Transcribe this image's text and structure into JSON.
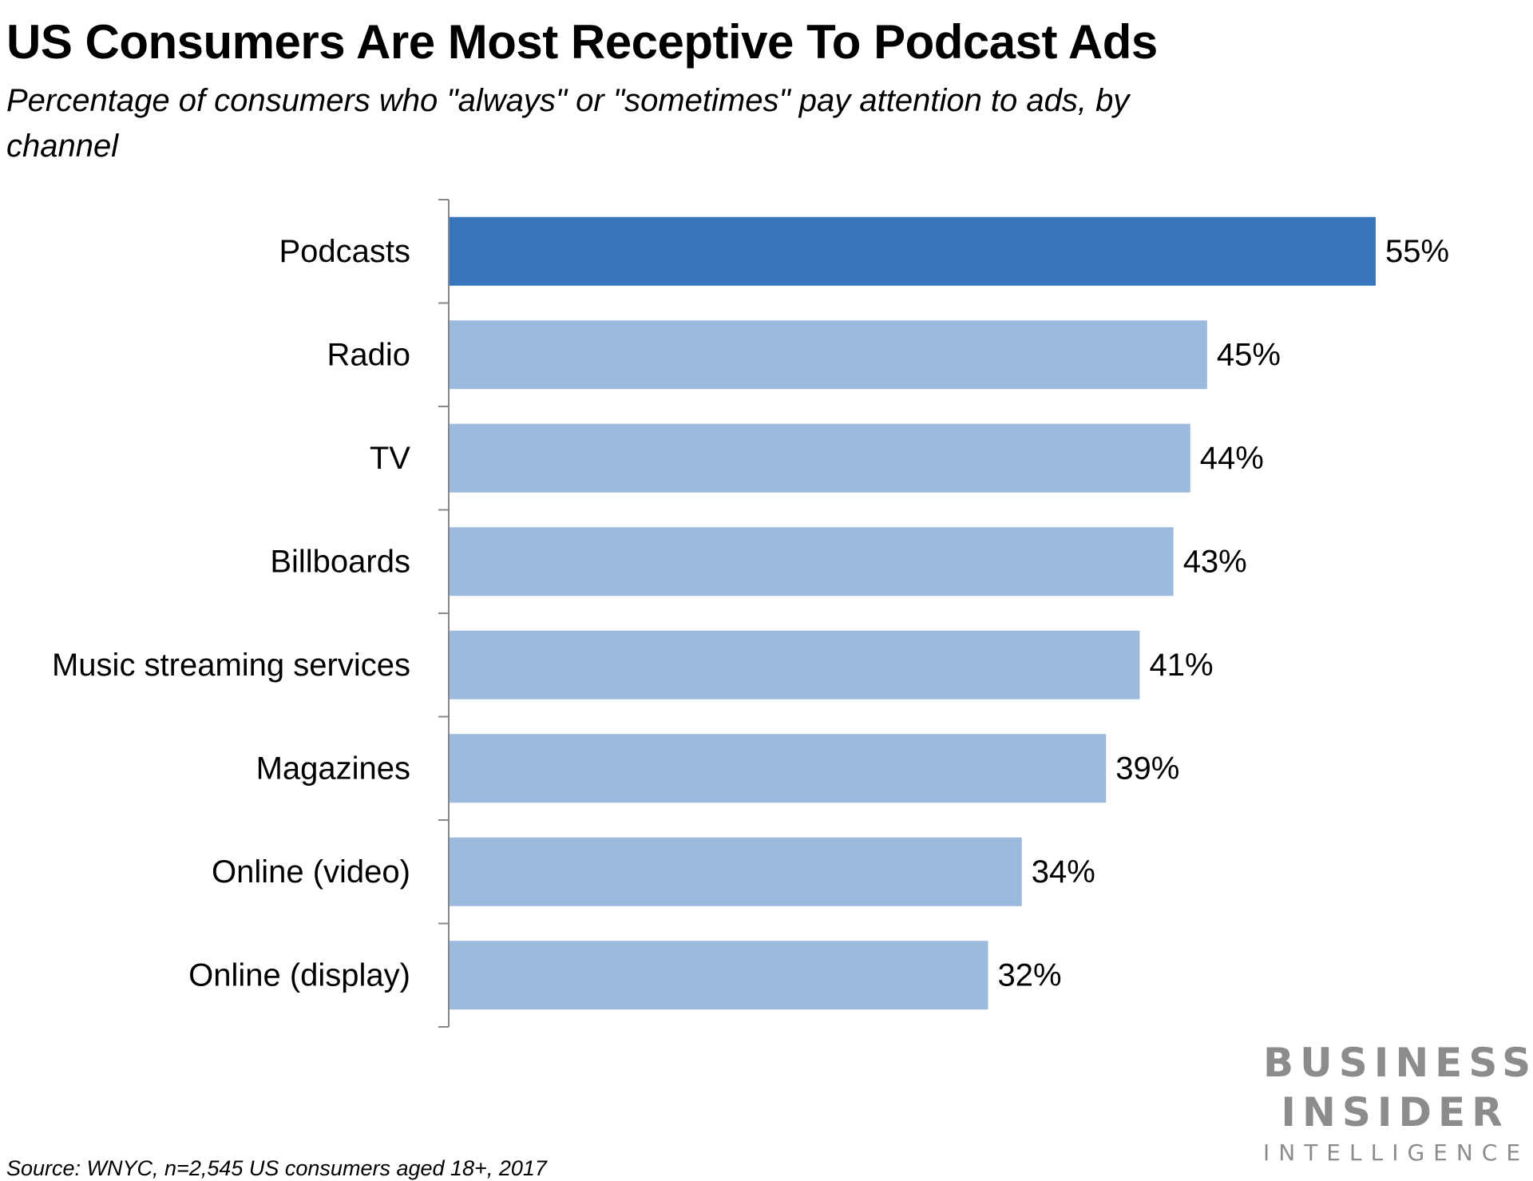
{
  "header": {
    "title": "US Consumers Are Most Receptive To Podcast Ads",
    "subtitle": "Percentage of consumers who \"always\" or \"sometimes\" pay attention to ads, by channel"
  },
  "footer": {
    "source": "Source: WNYC, n=2,545 US consumers aged 18+, 2017"
  },
  "logo": {
    "line1": "BUSINESS",
    "line2": "INSIDER",
    "line3": "INTELLIGENCE"
  },
  "colors": {
    "highlight_bar": "#3775bd",
    "bar": "#9bbade",
    "axis": "#888888",
    "logo": "#8c8c8c"
  },
  "chart_data": {
    "type": "bar",
    "orientation": "horizontal",
    "categories": [
      "Podcasts",
      "Radio",
      "TV",
      "Billboards",
      "Music streaming services",
      "Magazines",
      "Online (video)",
      "Online (display)"
    ],
    "values": [
      55,
      45,
      44,
      43,
      41,
      39,
      34,
      32
    ],
    "value_labels": [
      "55%",
      "45%",
      "44%",
      "43%",
      "41%",
      "39%",
      "34%",
      "32%"
    ],
    "highlight_index": 0,
    "xlim": [
      0,
      55
    ],
    "grid": false,
    "legend": "none"
  }
}
